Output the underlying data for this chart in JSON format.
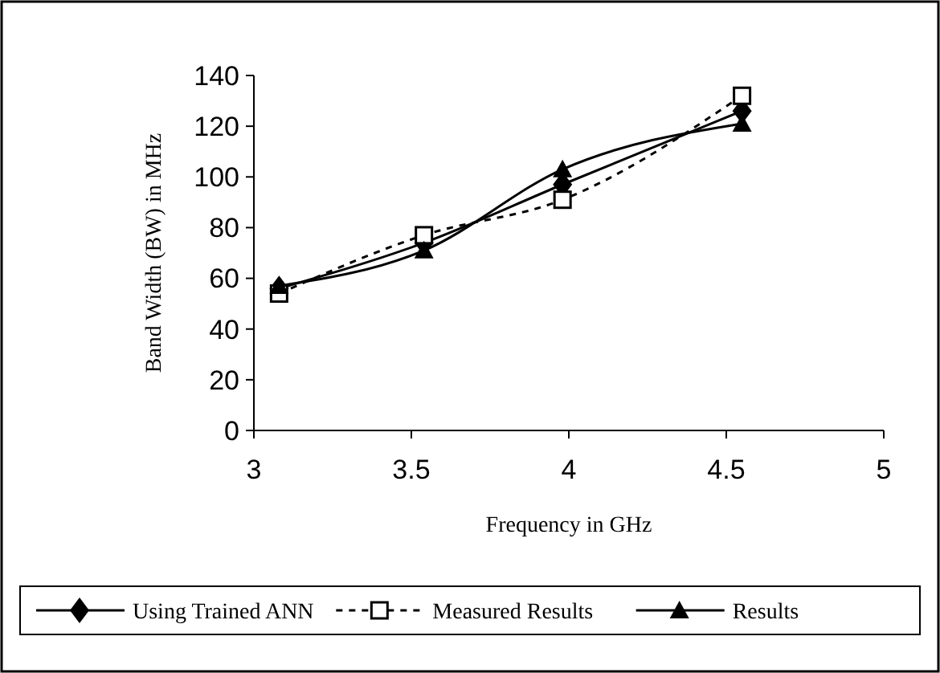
{
  "chart_data": {
    "type": "line",
    "xlabel": "Frequency in GHz",
    "ylabel": "Band Width (BW) in MHz",
    "x": [
      3.08,
      3.54,
      3.98,
      4.55
    ],
    "series": [
      {
        "name": "Using Trained ANN",
        "color": "#000000",
        "values": [
          56,
          74,
          97,
          126
        ],
        "marker": "diamond",
        "line_style": "solid"
      },
      {
        "name": "Measured Results",
        "color": "#000000",
        "values": [
          54,
          77,
          91,
          132
        ],
        "marker": "square",
        "line_style": "dashed"
      },
      {
        "name": "Results",
        "color": "#000000",
        "values": [
          57,
          71,
          103,
          121
        ],
        "marker": "triangle",
        "line_style": "solid"
      }
    ],
    "xlim": [
      3,
      5
    ],
    "xticks": [
      3,
      3.5,
      4,
      4.5,
      5
    ],
    "ylim": [
      0,
      140
    ],
    "yticks": [
      0,
      20,
      40,
      60,
      80,
      100,
      120,
      140
    ],
    "grid": false,
    "legend": "bottom"
  }
}
